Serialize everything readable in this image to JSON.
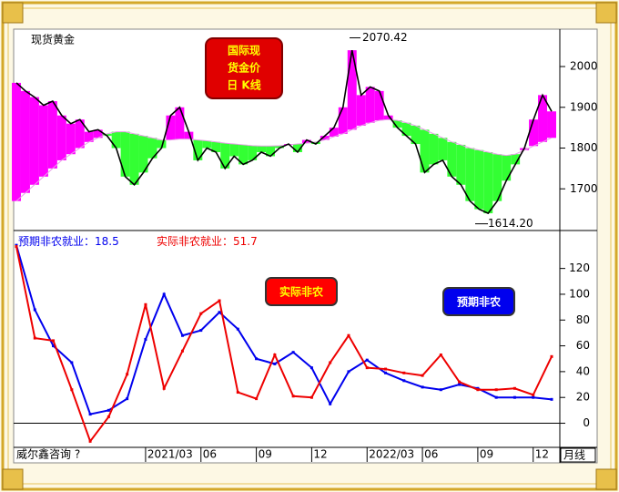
{
  "chart_data": [
    {
      "type": "line",
      "label": "现货黄金",
      "annotation": [
        "国际现",
        "货金价",
        "日 K线"
      ],
      "ylim": [
        1600,
        2085
      ],
      "yticks": [
        1700,
        1800,
        1900,
        2000
      ],
      "high": 2070.42,
      "low": {
        "value": 1614.2,
        "label": "1614.20"
      },
      "fill_colors": {
        "above": "#ff00ff",
        "below": "#33ff33"
      },
      "series": [
        {
          "color": "#000000",
          "values": [
            1960,
            1940,
            1925,
            1905,
            1915,
            1880,
            1860,
            1870,
            1840,
            1845,
            1830,
            1800,
            1730,
            1710,
            1740,
            1775,
            1800,
            1880,
            1900,
            1840,
            1770,
            1800,
            1790,
            1750,
            1780,
            1760,
            1770,
            1790,
            1780,
            1800,
            1810,
            1790,
            1820,
            1810,
            1830,
            1850,
            1900,
            2040,
            1930,
            1950,
            1940,
            1880,
            1850,
            1830,
            1810,
            1740,
            1760,
            1770,
            1730,
            1710,
            1670,
            1650,
            1640,
            1670,
            1720,
            1760,
            1800,
            1870,
            1930,
            1890
          ]
        },
        {
          "color": "#e8a0e8",
          "values": [
            1670,
            1690,
            1710,
            1730,
            1750,
            1770,
            1785,
            1800,
            1815,
            1825,
            1835,
            1840,
            1840,
            1835,
            1830,
            1825,
            1820,
            1820,
            1822,
            1822,
            1820,
            1818,
            1815,
            1812,
            1810,
            1808,
            1806,
            1805,
            1805,
            1806,
            1808,
            1810,
            1812,
            1815,
            1820,
            1828,
            1835,
            1845,
            1855,
            1862,
            1868,
            1870,
            1868,
            1862,
            1855,
            1845,
            1835,
            1825,
            1815,
            1808,
            1800,
            1795,
            1790,
            1785,
            1782,
            1785,
            1795,
            1805,
            1815,
            1825
          ]
        }
      ]
    },
    {
      "type": "line",
      "categories": [
        null,
        null,
        null,
        null,
        null,
        null,
        null,
        "2021/03",
        null,
        null,
        "06",
        null,
        null,
        "09",
        null,
        null,
        "12",
        null,
        null,
        "2022/03",
        null,
        null,
        "06",
        null,
        null,
        "09",
        null,
        null,
        "12",
        null
      ],
      "ylim": [
        -18,
        148
      ],
      "yticks": [
        0,
        20,
        40,
        60,
        80,
        100,
        120
      ],
      "annotations": [
        {
          "text": "实际非农",
          "color": "#ff0000"
        },
        {
          "text": "预期非农",
          "color": "#0000ee"
        }
      ],
      "source": "威尔鑫咨询 ?",
      "period": "月线",
      "series": [
        {
          "name": "预期非农就业：",
          "color": "#0000ee",
          "values": [
            138,
            88,
            60,
            47,
            7,
            10,
            19,
            65,
            100,
            68,
            72,
            86,
            73,
            50,
            46,
            55,
            43,
            15,
            40,
            49,
            39,
            33,
            28,
            26,
            30,
            27,
            20,
            20,
            20,
            18.5
          ]
        },
        {
          "name": "实际非农就业：",
          "color": "#ee0000",
          "values": [
            137,
            66,
            64,
            26,
            -14,
            5,
            38,
            92,
            27,
            56,
            85,
            95,
            24,
            19,
            53,
            21,
            20,
            47,
            68,
            43,
            42,
            39,
            37,
            53,
            32,
            26,
            26,
            27,
            22,
            51.7
          ]
        }
      ]
    }
  ]
}
